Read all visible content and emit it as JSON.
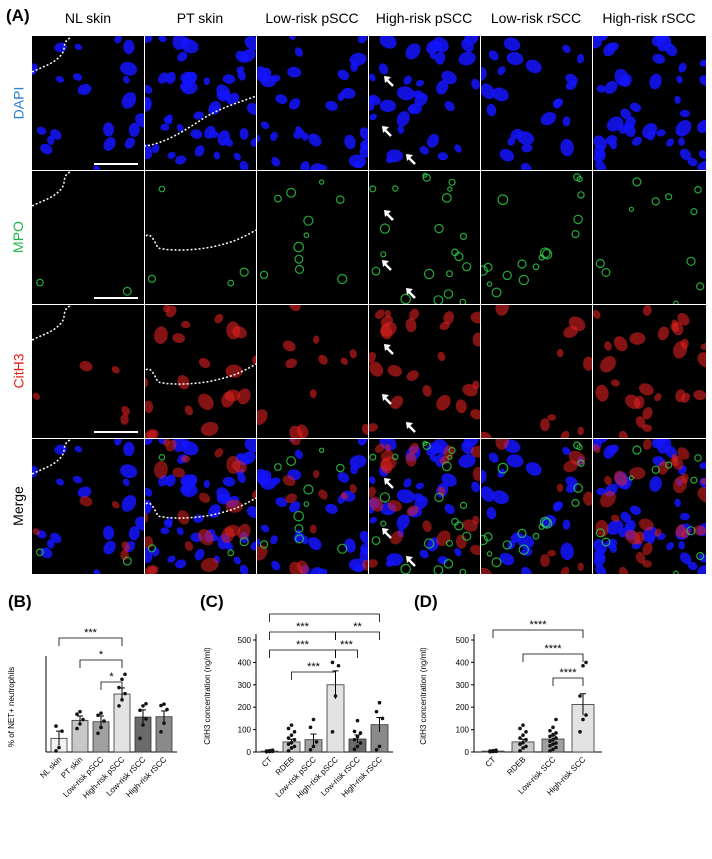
{
  "panel_labels": {
    "a": "(A)",
    "b": "(B)",
    "c": "(C)",
    "d": "(D)"
  },
  "micrograph": {
    "columns": [
      "NL skin",
      "PT skin",
      "Low-risk pSCC",
      "High-risk pSCC",
      "Low-risk rSCC",
      "High-risk rSCC"
    ],
    "rows": [
      {
        "label": "DAPI",
        "color": "#2a7fd4"
      },
      {
        "label": "MPO",
        "color": "#22b14c"
      },
      {
        "label": "CitH3",
        "color": "#e0201a"
      },
      {
        "label": "Merge",
        "color": "#000000"
      }
    ],
    "stain_colors": {
      "dapi": "#1414ff",
      "mpo": "#2fd34a",
      "cith3": "#e02020"
    }
  },
  "chart_data": [
    {
      "type": "bar",
      "panel": "(B)",
      "ylabel": "% of NET+ neutrophils",
      "categories": [
        "NL skin",
        "PT skin",
        "Low-risk pSCC",
        "High-risk pSCC",
        "Low-risk rSCC",
        "High-risk rSCC"
      ],
      "values": [
        3.8,
        8.8,
        8.4,
        16.1,
        9.7,
        9.8
      ],
      "errors": [
        2.0,
        1.2,
        1.6,
        1.7,
        2.0,
        1.6
      ],
      "bar_colors": [
        "#f2f2f2",
        "#c8c8c8",
        "#a0a0a0",
        "#e3e3e3",
        "#6a6a6a",
        "#8a8a8a"
      ],
      "points": [
        [
          0.3,
          1.2,
          5.8,
          7.2
        ],
        [
          6.5,
          7.8,
          9.0,
          10.5,
          11.2
        ],
        [
          5.2,
          6.8,
          8.6,
          10.2,
          10.8
        ],
        [
          12.8,
          14.5,
          16.2,
          17.9,
          20.2,
          21.6
        ],
        [
          3.8,
          7.5,
          9.2,
          11.6,
          12.8,
          13.4
        ],
        [
          5.6,
          8.0,
          11.8,
          12.9,
          13.3
        ]
      ],
      "ylim": [
        0,
        25
      ],
      "significance": [
        {
          "from": 0,
          "to": 3,
          "label": "***"
        },
        {
          "from": 1,
          "to": 3,
          "label": "*"
        },
        {
          "from": 2,
          "to": 3,
          "label": "*"
        }
      ]
    },
    {
      "type": "bar",
      "panel": "(C)",
      "ylabel": "CitH3 concentration (ng/ml)",
      "categories": [
        "CT",
        "RDEB",
        "Low-risk pSCC",
        "High-risk pSCC",
        "Low-risk rSCC",
        "High-risk rSCC"
      ],
      "values": [
        4,
        45,
        55,
        300,
        58,
        122
      ],
      "errors": [
        2,
        12,
        25,
        62,
        18,
        32
      ],
      "bar_colors": [
        "#f2f2f2",
        "#c8c8c8",
        "#a0a0a0",
        "#e3e3e3",
        "#6a6a6a",
        "#8a8a8a"
      ],
      "points": [
        [
          1,
          2,
          3,
          4,
          6,
          8
        ],
        [
          5,
          18,
          25,
          35,
          42,
          55,
          62,
          75,
          90,
          105,
          120
        ],
        [
          10,
          25,
          45,
          110,
          145
        ],
        [
          90,
          250,
          385,
          400
        ],
        [
          12,
          25,
          40,
          55,
          68,
          85,
          92,
          140
        ],
        [
          10,
          25,
          150,
          180,
          220
        ]
      ],
      "ytick_values": [
        0,
        100,
        200,
        300,
        400,
        500
      ],
      "ylim": [
        0,
        500
      ],
      "significance": [
        {
          "from": 0,
          "to": 5,
          "label": "*"
        },
        {
          "from": 0,
          "to": 3,
          "label": "***"
        },
        {
          "from": 3,
          "to": 5,
          "label": "**"
        },
        {
          "from": 0,
          "to": 3,
          "label": "***"
        },
        {
          "from": 3,
          "to": 4,
          "label": "***"
        },
        {
          "from": 1,
          "to": 3,
          "label": "***"
        }
      ]
    },
    {
      "type": "bar",
      "panel": "(D)",
      "ylabel": "CitH3 concentration (ng/ml)",
      "categories": [
        "CT",
        "RDEB",
        "Low-risk SCC",
        "High-risk SCC"
      ],
      "values": [
        4,
        45,
        58,
        212
      ],
      "errors": [
        2,
        12,
        14,
        48
      ],
      "bar_colors": [
        "#f2f2f2",
        "#c8c8c8",
        "#a0a0a0",
        "#e3e3e3"
      ],
      "points": [
        [
          1,
          2,
          3,
          4,
          6,
          8
        ],
        [
          5,
          18,
          25,
          35,
          42,
          55,
          62,
          75,
          90,
          105,
          120
        ],
        [
          5,
          12,
          20,
          28,
          35,
          40,
          48,
          55,
          62,
          70,
          78,
          85,
          95,
          110,
          145
        ],
        [
          90,
          145,
          165,
          250,
          385,
          400
        ]
      ],
      "ytick_values": [
        0,
        100,
        200,
        300,
        400,
        500
      ],
      "ylim": [
        0,
        500
      ],
      "significance": [
        {
          "from": 0,
          "to": 3,
          "label": "****"
        },
        {
          "from": 1,
          "to": 3,
          "label": "****"
        },
        {
          "from": 2,
          "to": 3,
          "label": "****"
        }
      ]
    }
  ]
}
